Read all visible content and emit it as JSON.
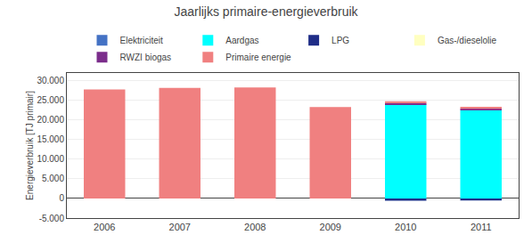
{
  "chart_data": {
    "type": "bar",
    "title": "Jaarlijks primaire-energieverbruik",
    "categories": [
      "2006",
      "2007",
      "2008",
      "2009",
      "2010",
      "2011"
    ],
    "ylabel": "Energieverbruik [TJ primair]",
    "series": [
      {
        "name": "Elektriciteit",
        "color": "#4472C4",
        "values": [
          0,
          0,
          0,
          0,
          0,
          0
        ]
      },
      {
        "name": "Aardgas",
        "color": "#00FFFF",
        "values": [
          0,
          0,
          0,
          0,
          24000,
          22500
        ]
      },
      {
        "name": "LPG",
        "color": "#1F2D87",
        "values": [
          0,
          0,
          0,
          0,
          -600,
          -500
        ]
      },
      {
        "name": "Gas-/dieselolie",
        "color": "#FFFFC0",
        "values": [
          0,
          0,
          0,
          0,
          0,
          0
        ]
      },
      {
        "name": "RWZI biogas",
        "color": "#7B2D8B",
        "values": [
          0,
          0,
          0,
          0,
          350,
          350
        ]
      },
      {
        "name": "Primaire energie",
        "color": "#F08080",
        "values": [
          27800,
          28200,
          28300,
          23300,
          450,
          550
        ]
      }
    ],
    "stacked": true,
    "ylim": [
      -5000,
      32000
    ],
    "yticks": [
      {
        "value": -5000,
        "label": "-5.000"
      },
      0,
      {
        "value": 5000,
        "label": "5.000"
      },
      {
        "value": 10000,
        "label": "10.000"
      },
      {
        "value": 15000,
        "label": "15.000"
      },
      {
        "value": 20000,
        "label": "20.000"
      },
      {
        "value": 25000,
        "label": "25.000"
      },
      {
        "value": 30000,
        "label": "30.000"
      }
    ],
    "grid": true,
    "legend": "top"
  }
}
